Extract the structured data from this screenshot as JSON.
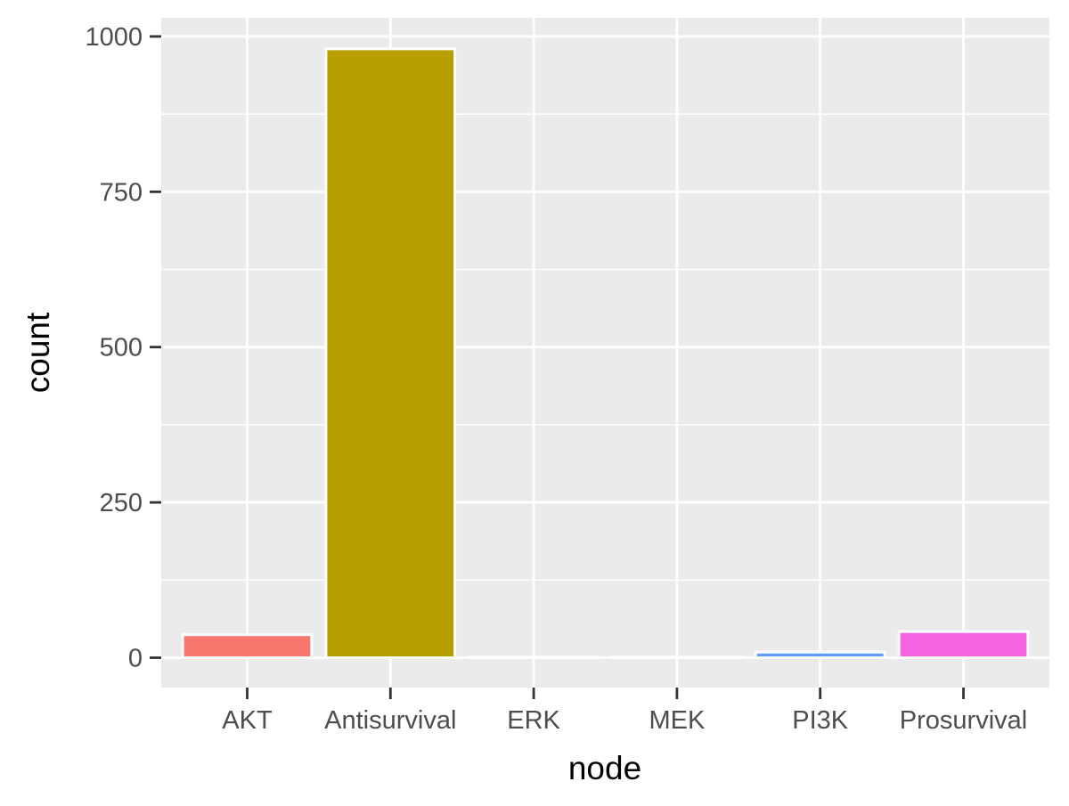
{
  "chart_data": {
    "type": "bar",
    "title": "",
    "xlabel": "node",
    "ylabel": "count",
    "categories": [
      "AKT",
      "Antisurvival",
      "ERK",
      "MEK",
      "PI3K",
      "Prosurvival"
    ],
    "values": [
      37,
      980,
      1,
      1,
      9,
      42
    ],
    "colors": [
      "#F8766D",
      "#B79F00",
      "#00BA38",
      "#00BFC4",
      "#619CFF",
      "#F564E3"
    ],
    "ylim": [
      -48,
      1030
    ],
    "y_ticks": [
      0,
      250,
      500,
      750,
      1000
    ],
    "y_minor_ticks": [
      125,
      375,
      625,
      875
    ],
    "grid": true,
    "legend": "none",
    "panel_background": "#EBEBEB",
    "gridline_color": "#FFFFFF",
    "bar_outline_color": "#FFFFFF"
  }
}
